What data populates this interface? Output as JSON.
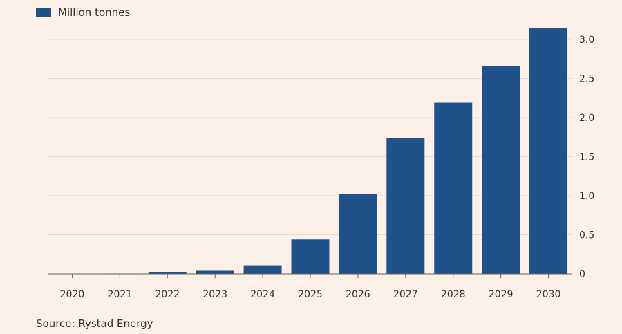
{
  "chart_data": {
    "type": "bar",
    "categories": [
      "2020",
      "2021",
      "2022",
      "2023",
      "2024",
      "2025",
      "2026",
      "2027",
      "2028",
      "2029",
      "2030"
    ],
    "series": [
      {
        "name": "Million tonnes",
        "values": [
          0.0,
          0.005,
          0.02,
          0.04,
          0.11,
          0.44,
          1.02,
          1.74,
          2.19,
          2.66,
          3.15
        ]
      }
    ],
    "title": "",
    "xlabel": "",
    "ylabel": "",
    "ylim": [
      0,
      3.2
    ],
    "yticks": [
      0,
      0.5,
      1.0,
      1.5,
      2.0,
      2.5,
      3.0
    ],
    "ytick_labels": [
      "0",
      "0.5",
      "1.0",
      "1.5",
      "2.0",
      "2.5",
      "3.0"
    ],
    "y_axis_side": "right",
    "grid": true,
    "legend_position": "top-left",
    "source": "Source: Rystad Energy"
  },
  "colors": {
    "background": "#fdf1e7",
    "bar": "#1f528a",
    "grid": "#e6d9ce",
    "axis": "#66605c",
    "text": "#33302e"
  }
}
